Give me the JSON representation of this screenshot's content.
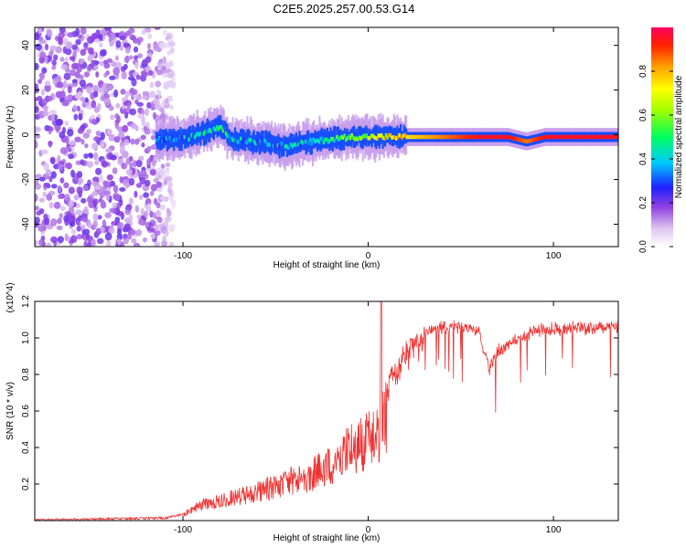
{
  "title": "C2E5.2025.257.00.53.G14",
  "chart_data": [
    {
      "type": "heatmap",
      "title": "C2E5.2025.257.00.53.G14",
      "xlabel": "Height of straight line (km)",
      "ylabel": "Frequency (Hz)",
      "xlim": [
        -180,
        135
      ],
      "ylim": [
        -50,
        48
      ],
      "xticks": [
        -100,
        0,
        100
      ],
      "yticks": [
        -40,
        -20,
        0,
        20,
        40
      ],
      "colorbar": {
        "label": "Normalized spectral amplitude",
        "range": [
          0,
          1
        ],
        "ticks": [
          "0.0",
          "0.2",
          "0.4",
          "0.6",
          "0.8"
        ]
      },
      "ridge": {
        "x": [
          -115,
          -100,
          -90,
          -80,
          -75,
          -60,
          -45,
          -30,
          -20,
          -10,
          0,
          10,
          20,
          40,
          60,
          75,
          85,
          95,
          110,
          135
        ],
        "frequency": [
          -2,
          -2,
          1,
          4,
          -2,
          -3,
          -5,
          -3,
          -2,
          -1,
          -1,
          -1,
          -1,
          -1,
          -1,
          -1,
          -3,
          -1,
          -1,
          -1
        ],
        "amplitude": [
          0.3,
          0.35,
          0.4,
          0.45,
          0.4,
          0.35,
          0.35,
          0.4,
          0.45,
          0.6,
          0.65,
          0.7,
          0.75,
          0.85,
          0.95,
          0.95,
          0.85,
          0.95,
          0.95,
          0.95
        ]
      }
    },
    {
      "type": "line",
      "xlabel": "Height of straight line (km)",
      "ylabel": "SNR (10 * v/v)",
      "yscale_note": "(x10^4)",
      "xlim": [
        -180,
        135
      ],
      "ylim": [
        0,
        1.2
      ],
      "xticks": [
        -100,
        0,
        100
      ],
      "yticks": [
        0.2,
        0.4,
        0.6,
        0.8,
        1.0,
        1.2
      ],
      "series": [
        {
          "name": "SNR",
          "color": "#ee3333",
          "x": [
            -180,
            -110,
            -100,
            -90,
            -80,
            -70,
            -60,
            -50,
            -40,
            -30,
            -20,
            -10,
            0,
            5,
            10,
            15,
            20,
            25,
            30,
            40,
            50,
            60,
            65,
            70,
            80,
            90,
            100,
            110,
            120,
            135
          ],
          "y": [
            0.01,
            0.02,
            0.04,
            0.12,
            0.15,
            0.18,
            0.22,
            0.26,
            0.3,
            0.35,
            0.42,
            0.55,
            0.6,
            0.68,
            0.8,
            0.9,
            0.98,
            1.02,
            1.05,
            1.08,
            1.09,
            1.06,
            0.85,
            0.95,
            1.02,
            1.06,
            1.07,
            1.08,
            1.08,
            1.08
          ]
        }
      ]
    }
  ]
}
